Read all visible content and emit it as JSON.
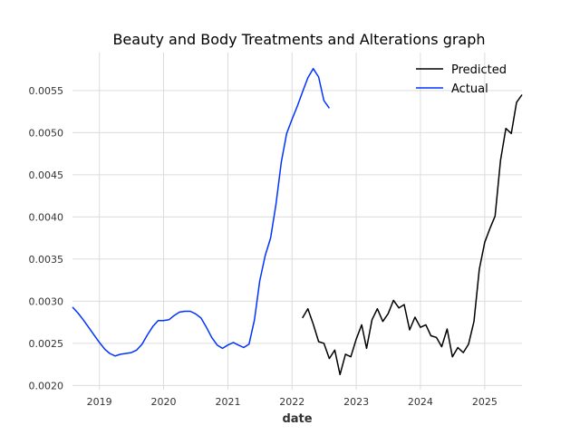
{
  "chart_data": {
    "type": "line",
    "title": "Beauty and Body Treatments and Alterations graph",
    "xlabel": "date",
    "ylabel": "",
    "xlim": [
      "2018-08-01",
      "2025-08-01"
    ],
    "ylim": [
      0.00195,
      0.00595
    ],
    "x_ticks": [
      "2019",
      "2020",
      "2021",
      "2022",
      "2023",
      "2024",
      "2025"
    ],
    "y_ticks": [
      "0.0020",
      "0.0025",
      "0.0030",
      "0.0035",
      "0.0040",
      "0.0045",
      "0.0050",
      "0.0055"
    ],
    "grid": true,
    "legend_position": "top-right",
    "colors": {
      "Predicted": "#000000",
      "Actual": "#0033ff"
    },
    "series": [
      {
        "name": "Predicted",
        "points": [
          [
            "2022-03-01",
            0.0028
          ],
          [
            "2022-04-01",
            0.00291
          ],
          [
            "2022-05-01",
            0.00273
          ],
          [
            "2022-06-01",
            0.00252
          ],
          [
            "2022-07-01",
            0.0025
          ],
          [
            "2022-08-01",
            0.00232
          ],
          [
            "2022-09-01",
            0.00242
          ],
          [
            "2022-10-01",
            0.00213
          ],
          [
            "2022-11-01",
            0.00237
          ],
          [
            "2022-12-01",
            0.00234
          ],
          [
            "2023-01-01",
            0.00255
          ],
          [
            "2023-02-01",
            0.00272
          ],
          [
            "2023-03-01",
            0.00244
          ],
          [
            "2023-04-01",
            0.00278
          ],
          [
            "2023-05-01",
            0.00291
          ],
          [
            "2023-06-01",
            0.00276
          ],
          [
            "2023-07-01",
            0.00285
          ],
          [
            "2023-08-01",
            0.00301
          ],
          [
            "2023-09-01",
            0.00292
          ],
          [
            "2023-10-01",
            0.00296
          ],
          [
            "2023-11-01",
            0.00266
          ],
          [
            "2023-12-01",
            0.00281
          ],
          [
            "2024-01-01",
            0.00269
          ],
          [
            "2024-02-01",
            0.00272
          ],
          [
            "2024-03-01",
            0.00259
          ],
          [
            "2024-04-01",
            0.00257
          ],
          [
            "2024-05-01",
            0.00246
          ],
          [
            "2024-06-01",
            0.00267
          ],
          [
            "2024-07-01",
            0.00234
          ],
          [
            "2024-08-01",
            0.00245
          ],
          [
            "2024-09-01",
            0.00239
          ],
          [
            "2024-10-01",
            0.00249
          ],
          [
            "2024-11-01",
            0.00276
          ],
          [
            "2024-12-01",
            0.00338
          ],
          [
            "2025-01-01",
            0.0037
          ],
          [
            "2025-02-01",
            0.00387
          ],
          [
            "2025-03-01",
            0.00401
          ],
          [
            "2025-04-01",
            0.00467
          ],
          [
            "2025-05-01",
            0.00505
          ],
          [
            "2025-06-01",
            0.00499
          ],
          [
            "2025-07-01",
            0.00536
          ],
          [
            "2025-08-01",
            0.00545
          ]
        ]
      },
      {
        "name": "Actual",
        "points": [
          [
            "2018-08-01",
            0.00293
          ],
          [
            "2018-09-01",
            0.00286
          ],
          [
            "2018-10-01",
            0.00278
          ],
          [
            "2018-11-01",
            0.00269
          ],
          [
            "2018-12-01",
            0.0026
          ],
          [
            "2019-01-01",
            0.00251
          ],
          [
            "2019-02-01",
            0.00243
          ],
          [
            "2019-03-01",
            0.00238
          ],
          [
            "2019-04-01",
            0.00235
          ],
          [
            "2019-05-01",
            0.00237
          ],
          [
            "2019-06-01",
            0.00238
          ],
          [
            "2019-07-01",
            0.00239
          ],
          [
            "2019-08-01",
            0.00242
          ],
          [
            "2019-09-01",
            0.00249
          ],
          [
            "2019-10-01",
            0.0026
          ],
          [
            "2019-11-01",
            0.0027
          ],
          [
            "2019-12-01",
            0.00277
          ],
          [
            "2020-01-01",
            0.00277
          ],
          [
            "2020-02-01",
            0.00278
          ],
          [
            "2020-03-01",
            0.00283
          ],
          [
            "2020-04-01",
            0.00287
          ],
          [
            "2020-05-01",
            0.00288
          ],
          [
            "2020-06-01",
            0.00288
          ],
          [
            "2020-07-01",
            0.00285
          ],
          [
            "2020-08-01",
            0.0028
          ],
          [
            "2020-09-01",
            0.00269
          ],
          [
            "2020-10-01",
            0.00257
          ],
          [
            "2020-11-01",
            0.00248
          ],
          [
            "2020-12-01",
            0.00244
          ],
          [
            "2021-01-01",
            0.00248
          ],
          [
            "2021-02-01",
            0.00251
          ],
          [
            "2021-03-01",
            0.00248
          ],
          [
            "2021-04-01",
            0.00245
          ],
          [
            "2021-05-01",
            0.00249
          ],
          [
            "2021-06-01",
            0.00278
          ],
          [
            "2021-07-01",
            0.00324
          ],
          [
            "2021-08-01",
            0.00354
          ],
          [
            "2021-09-01",
            0.00375
          ],
          [
            "2021-10-01",
            0.00414
          ],
          [
            "2021-11-01",
            0.00465
          ],
          [
            "2021-12-01",
            0.00499
          ],
          [
            "2022-01-01",
            0.00516
          ],
          [
            "2022-02-01",
            0.00532
          ],
          [
            "2022-03-01",
            0.00548
          ],
          [
            "2022-04-01",
            0.00565
          ],
          [
            "2022-05-01",
            0.00576
          ],
          [
            "2022-06-01",
            0.00566
          ],
          [
            "2022-07-01",
            0.00538
          ],
          [
            "2022-08-01",
            0.00529
          ]
        ]
      }
    ]
  }
}
